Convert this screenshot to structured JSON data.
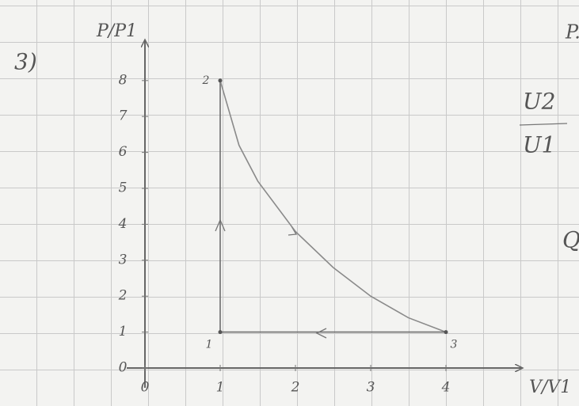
{
  "chart_data": {
    "type": "line",
    "problem_label": "3)",
    "x_label": "V/V1",
    "y_label": "P/P1",
    "xlim": [
      0,
      5
    ],
    "ylim": [
      0,
      9
    ],
    "xticks": [
      0,
      1,
      2,
      3,
      4
    ],
    "yticks": [
      0,
      1,
      2,
      3,
      4,
      5,
      6,
      7,
      8
    ],
    "series": [
      {
        "color": "#6e6e6e",
        "x": [
          1,
          1
        ],
        "values": [
          1,
          8
        ]
      },
      {
        "color": "#8a8a8a",
        "x": [
          1,
          1.25,
          1.5,
          2,
          2.5,
          3,
          3.5,
          4
        ],
        "values": [
          8,
          6.2,
          5.2,
          3.8,
          2.8,
          2,
          1.4,
          1
        ]
      },
      {
        "color": "#6e6e6e",
        "x": [
          4,
          1
        ],
        "values": [
          1,
          1
        ]
      }
    ],
    "points": {
      "labels": [
        "1",
        "2",
        "3"
      ],
      "x": [
        1,
        1,
        4
      ],
      "values": [
        1,
        8,
        1
      ]
    },
    "annotations": [
      "P.",
      "U2",
      "U1",
      "Q"
    ]
  }
}
